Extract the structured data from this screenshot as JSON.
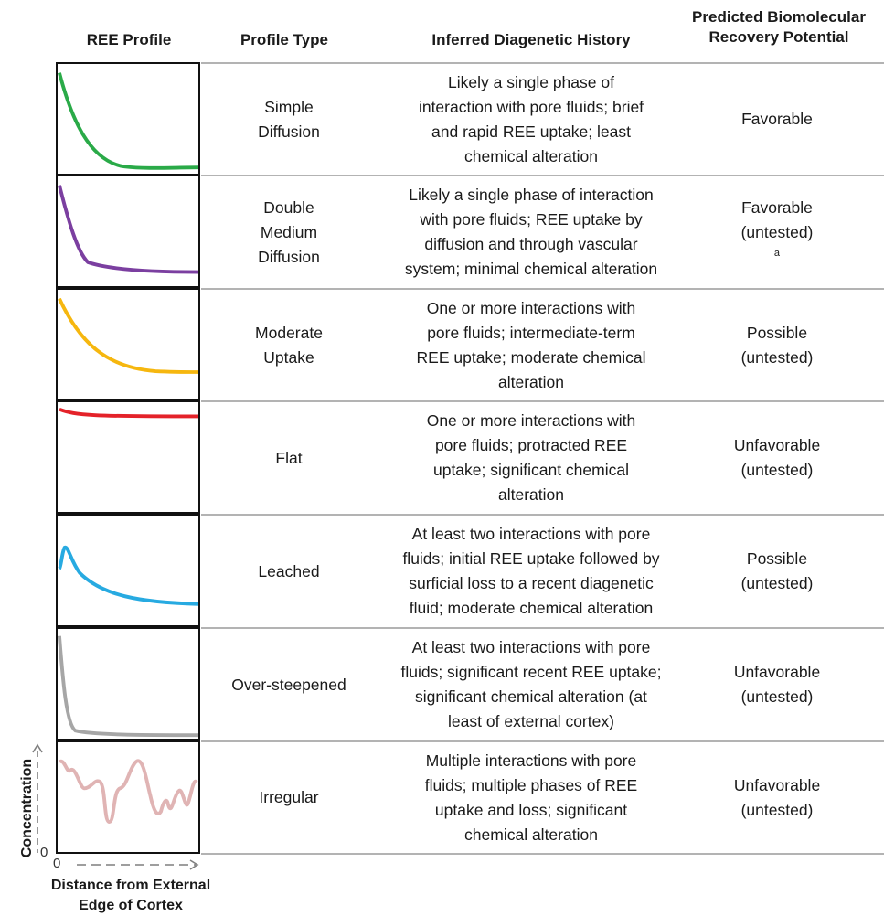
{
  "headers": {
    "profile": "REE Profile",
    "type": "Profile Type",
    "history": "Inferred Diagenetic History",
    "recovery_line1": "Predicted Biomolecular",
    "recovery_line2": "Recovery Potential"
  },
  "rows": [
    {
      "profile_curve": "simple-diffusion",
      "color": "#2aaa48",
      "type_lines": [
        "Simple",
        "Diffusion"
      ],
      "history_lines": [
        "Likely a single phase of",
        "interaction with pore fluids; brief",
        "and rapid REE uptake; least",
        "chemical alteration"
      ],
      "recovery_lines": [
        "Favorable"
      ],
      "recovery_note": ""
    },
    {
      "profile_curve": "double-medium-diffusion",
      "color": "#7b3fa0",
      "type_lines": [
        "Double",
        "Medium",
        "Diffusion"
      ],
      "history_lines": [
        "Likely a single phase of interaction",
        "with pore fluids; REE uptake by",
        "diffusion and through vascular",
        "system; minimal chemical alteration"
      ],
      "recovery_lines": [
        "Favorable",
        "(untested)"
      ],
      "recovery_note": "a"
    },
    {
      "profile_curve": "moderate-uptake",
      "color": "#f6b70f",
      "type_lines": [
        "Moderate",
        "Uptake"
      ],
      "history_lines": [
        "One or more interactions with",
        "pore fluids; intermediate-term",
        "REE uptake; moderate chemical",
        "alteration"
      ],
      "recovery_lines": [
        "Possible",
        "(untested)"
      ],
      "recovery_note": ""
    },
    {
      "profile_curve": "flat",
      "color": "#e42229",
      "type_lines": [
        "Flat"
      ],
      "history_lines": [
        "One or more interactions with",
        "pore fluids; protracted REE",
        "uptake; significant chemical",
        "alteration"
      ],
      "recovery_lines": [
        "Unfavorable",
        "(untested)"
      ],
      "recovery_note": ""
    },
    {
      "profile_curve": "leached",
      "color": "#27aae1",
      "type_lines": [
        "Leached"
      ],
      "history_lines": [
        "At least two interactions with pore",
        "fluids; initial REE uptake followed by",
        "surficial loss to a recent diagenetic",
        "fluid; moderate chemical alteration"
      ],
      "recovery_lines": [
        "Possible",
        "(untested)"
      ],
      "recovery_note": ""
    },
    {
      "profile_curve": "over-steepened",
      "color": "#a6a6a6",
      "type_lines": [
        "Over-steepened"
      ],
      "history_lines": [
        "At least two interactions with pore",
        "fluids; significant recent REE uptake;",
        "significant chemical alteration (at",
        "least of external cortex)"
      ],
      "recovery_lines": [
        "Unfavorable",
        "(untested)"
      ],
      "recovery_note": ""
    },
    {
      "profile_curve": "irregular",
      "color": "#e0b4b4",
      "type_lines": [
        "Irregular"
      ],
      "history_lines": [
        "Multiple interactions with pore",
        "fluids; multiple phases of REE",
        "uptake and loss; significant",
        "chemical alteration"
      ],
      "recovery_lines": [
        "Unfavorable",
        "(untested)"
      ],
      "recovery_note": ""
    }
  ],
  "axes": {
    "y_label": "Concentration",
    "x_label_line1": "Distance from External",
    "x_label_line2": "Edge of Cortex",
    "origin": "0"
  }
}
